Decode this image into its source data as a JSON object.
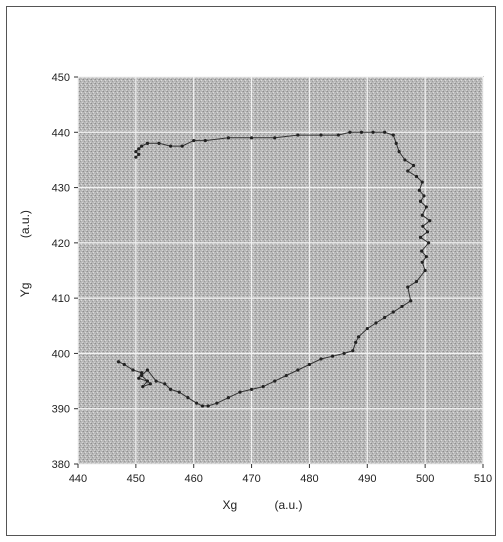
{
  "chart_data": {
    "type": "scatter",
    "title": "",
    "xlabel": "Xg",
    "xunit": "(a.u.)",
    "ylabel": "Yg",
    "yunit": "(a.u.)",
    "xlim": [
      440,
      510
    ],
    "ylim": [
      380,
      450
    ],
    "xticks": [
      "440",
      "450",
      "460",
      "470",
      "480",
      "490",
      "500",
      "510"
    ],
    "yticks": [
      "380",
      "390",
      "400",
      "410",
      "420",
      "430",
      "440",
      "450"
    ],
    "grid": true,
    "legend": "none",
    "background": "#b8b8b8",
    "line_color": "#333333",
    "series": [
      {
        "x": [
          447,
          448,
          449.5,
          451,
          450.5,
          452,
          451.2,
          452.5,
          451,
          452,
          453.5,
          455,
          456,
          457.5,
          459,
          460.5,
          461.5,
          462.5,
          464,
          466,
          468,
          470,
          472,
          474,
          476,
          478,
          480,
          482,
          484,
          486,
          487.5,
          488,
          488.5,
          490,
          491.5,
          493,
          494.5,
          496,
          497.5,
          497,
          498.5,
          500,
          499.5,
          500.2,
          499.4,
          500.6,
          499.2,
          500.4,
          499.6,
          500.8,
          499.5,
          500.2,
          499.2,
          499.8,
          499,
          499.5,
          498.5,
          497,
          498,
          496.5,
          495.5,
          495,
          494.5,
          493,
          491,
          489,
          487,
          485,
          482,
          478,
          474,
          470,
          466,
          462,
          460,
          458,
          456,
          454,
          452,
          451,
          450.5,
          450,
          450.5,
          450
        ],
        "y": [
          398.5,
          398,
          397,
          396.5,
          395.5,
          395,
          394,
          394.5,
          396,
          397,
          395,
          394.5,
          393.5,
          393,
          392,
          391,
          390.5,
          390.5,
          391,
          392,
          393,
          393.5,
          394,
          395,
          396,
          397,
          398,
          399,
          399.5,
          400,
          400.5,
          402,
          403,
          404.5,
          405.5,
          406.5,
          407.5,
          408.5,
          409.5,
          412,
          413,
          415,
          416.5,
          417.5,
          418.5,
          420,
          421,
          422,
          423,
          424,
          425,
          426.5,
          427.5,
          428.5,
          429.5,
          431,
          432,
          433,
          434,
          435,
          436.5,
          438,
          439.5,
          440,
          440,
          440,
          440,
          439.5,
          439.5,
          439.5,
          439,
          439,
          439,
          438.5,
          438.5,
          437.5,
          437.5,
          438,
          438,
          437.5,
          437,
          436.5,
          436,
          435.5
        ]
      }
    ]
  }
}
